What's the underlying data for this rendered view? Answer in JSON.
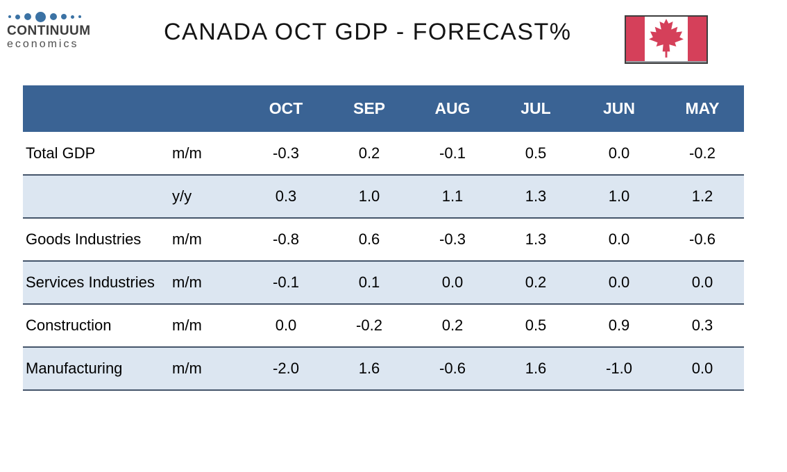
{
  "logo": {
    "name": "CONTINUUM",
    "subtitle": "economics"
  },
  "header": {
    "title": "CANADA OCT GDP - FORECAST%"
  },
  "flag": {
    "label": "canada-flag"
  },
  "colors": {
    "header_bg": "#3a6394",
    "header_text": "#ffffff",
    "row_alt_bg": "#dce6f1",
    "border": "#44546a",
    "flag_red": "#d5405a",
    "logo_blue": "#3b72a4"
  },
  "table": {
    "columns": [
      "",
      "",
      "OCT",
      "SEP",
      "AUG",
      "JUL",
      "JUN",
      "MAY"
    ],
    "rows": [
      {
        "label": "Total GDP",
        "measure": "m/m",
        "values": [
          "-0.3",
          "0.2",
          "-0.1",
          "0.5",
          "0.0",
          "-0.2"
        ]
      },
      {
        "label": "",
        "measure": "y/y",
        "values": [
          "0.3",
          "1.0",
          "1.1",
          "1.3",
          "1.0",
          "1.2"
        ]
      },
      {
        "label": "Goods Industries",
        "measure": "m/m",
        "values": [
          "-0.8",
          "0.6",
          "-0.3",
          "1.3",
          "0.0",
          "-0.6"
        ]
      },
      {
        "label": "Services Industries",
        "measure": "m/m",
        "values": [
          "-0.1",
          "0.1",
          "0.0",
          "0.2",
          "0.0",
          "0.0"
        ]
      },
      {
        "label": "Construction",
        "measure": "m/m",
        "values": [
          "0.0",
          "-0.2",
          "0.2",
          "0.5",
          "0.9",
          "0.3"
        ]
      },
      {
        "label": "Manufacturing",
        "measure": "m/m",
        "values": [
          "-2.0",
          "1.6",
          "-0.6",
          "1.6",
          "-1.0",
          "0.0"
        ]
      }
    ]
  },
  "chart_data": {
    "type": "table",
    "title": "CANADA OCT GDP - FORECAST%",
    "columns": [
      "OCT",
      "SEP",
      "AUG",
      "JUL",
      "JUN",
      "MAY"
    ],
    "series": [
      {
        "name": "Total GDP m/m",
        "values": [
          -0.3,
          0.2,
          -0.1,
          0.5,
          0.0,
          -0.2
        ]
      },
      {
        "name": "Total GDP y/y",
        "values": [
          0.3,
          1.0,
          1.1,
          1.3,
          1.0,
          1.2
        ]
      },
      {
        "name": "Goods Industries m/m",
        "values": [
          -0.8,
          0.6,
          -0.3,
          1.3,
          0.0,
          -0.6
        ]
      },
      {
        "name": "Services Industries m/m",
        "values": [
          -0.1,
          0.1,
          0.0,
          0.2,
          0.0,
          0.0
        ]
      },
      {
        "name": "Construction m/m",
        "values": [
          0.0,
          -0.2,
          0.2,
          0.5,
          0.9,
          0.3
        ]
      },
      {
        "name": "Manufacturing m/m",
        "values": [
          -2.0,
          1.6,
          -0.6,
          1.6,
          -1.0,
          0.0
        ]
      }
    ],
    "units": "percent"
  }
}
